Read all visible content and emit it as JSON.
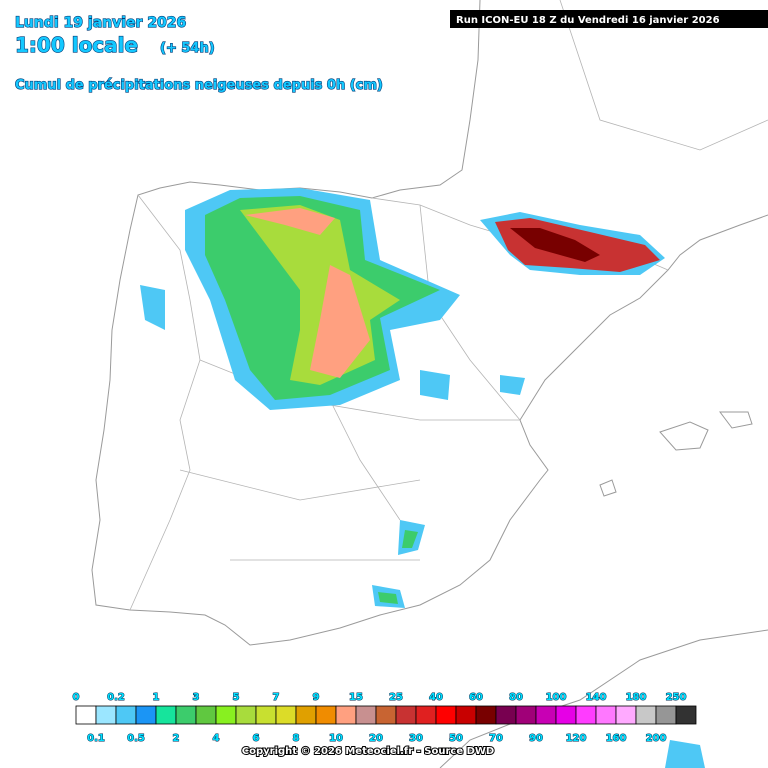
{
  "header": {
    "date": "Lundi 19 janvier 2026",
    "time": "1:00 locale",
    "lead": "(+ 54h)",
    "product": "Cumul de précipitations neigeuses depuis 0h (cm)",
    "run": "Run ICON-EU 18 Z du Vendredi 16 janvier 2026"
  },
  "legend": {
    "labels": [
      "0",
      "0.1",
      "0.2",
      "0.5",
      "1",
      "2",
      "3",
      "4",
      "5",
      "6",
      "7",
      "8",
      "9",
      "10",
      "15",
      "20",
      "25",
      "30",
      "40",
      "50",
      "60",
      "70",
      "80",
      "90",
      "100",
      "120",
      "140",
      "160",
      "180",
      "200",
      "250"
    ]
  },
  "footer": {
    "copyright": "Copyright © 2026 Meteociel.fr - Source DWD"
  }
}
